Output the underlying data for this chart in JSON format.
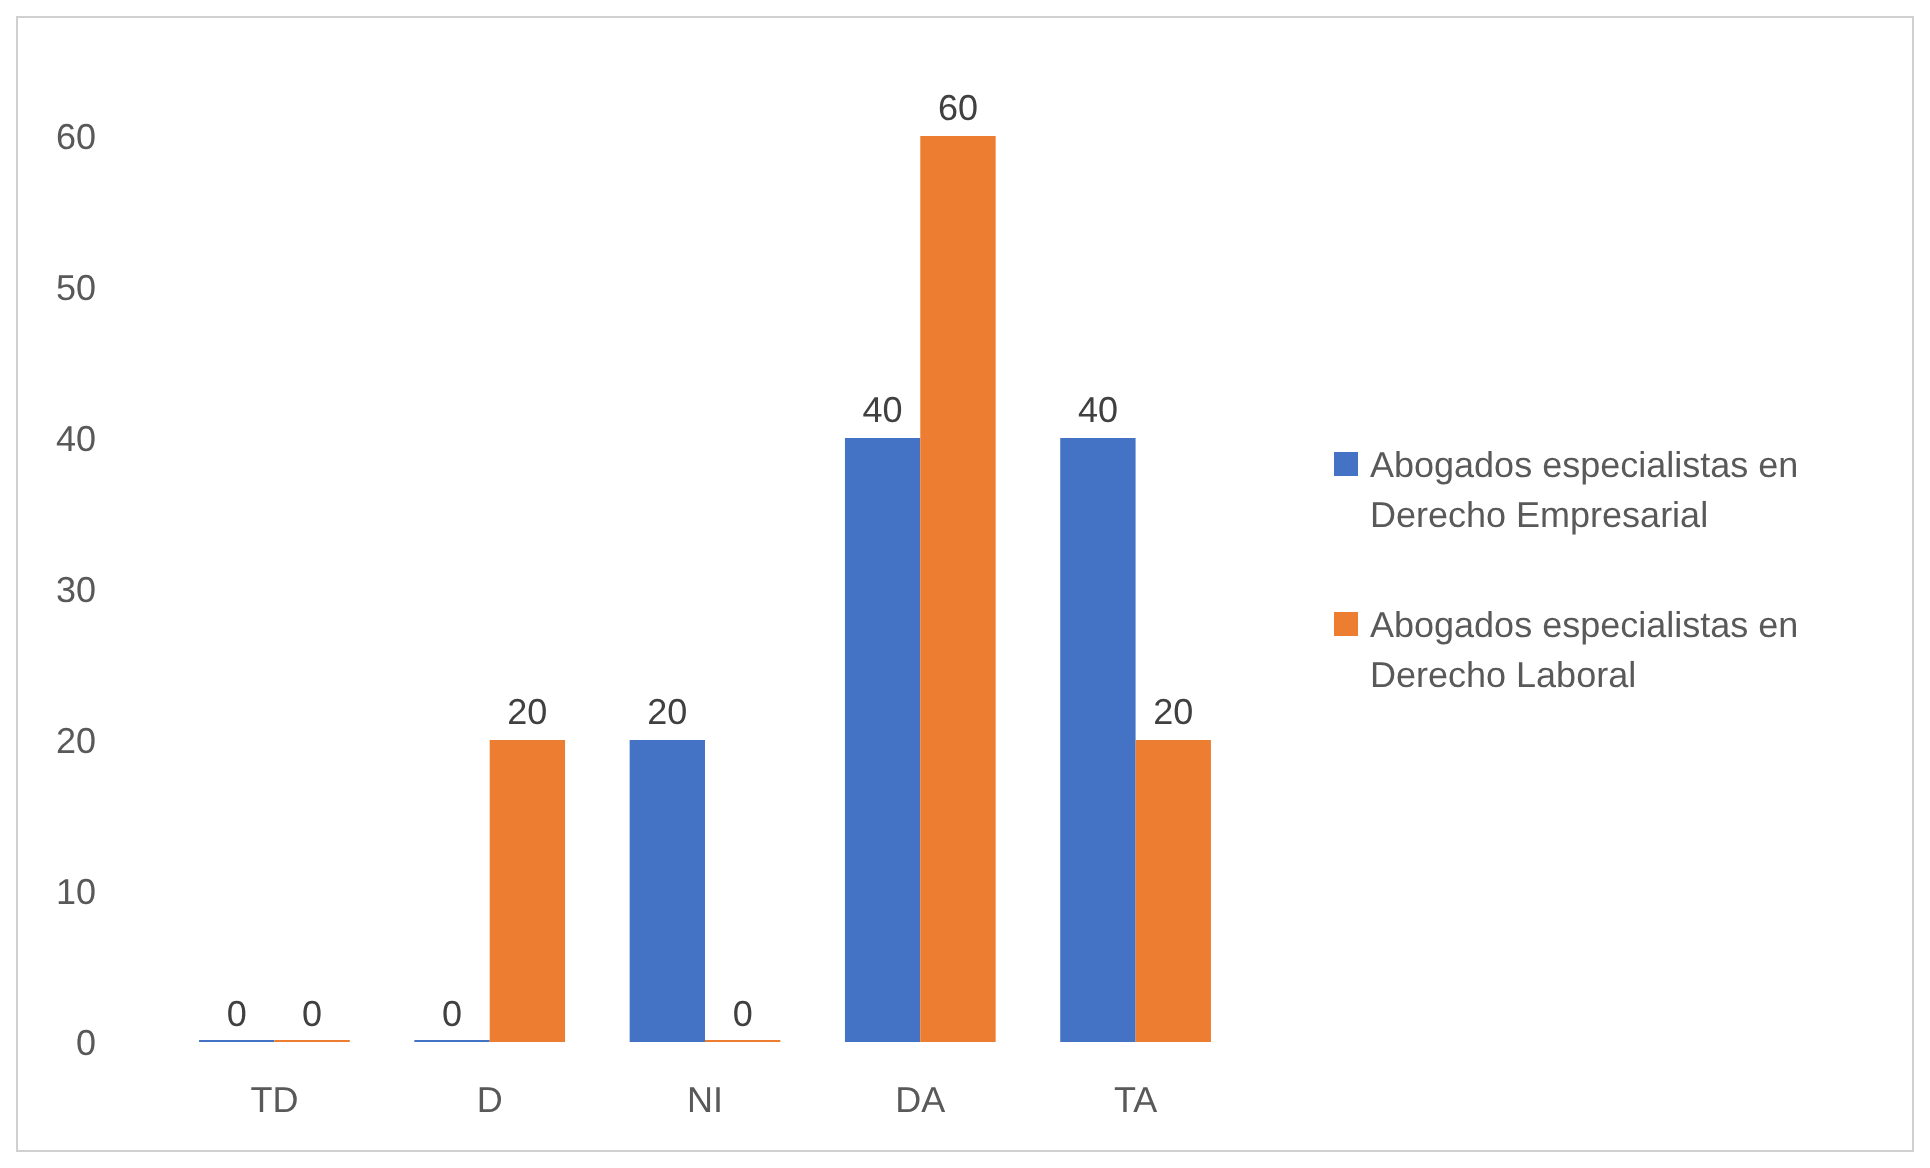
{
  "chart_data": {
    "type": "bar",
    "categories": [
      "TD",
      "D",
      "NI",
      "DA",
      "TA"
    ],
    "series": [
      {
        "name": "Abogados especialistas en Derecho Empresarial",
        "color": "#4472c4",
        "values": [
          0,
          0,
          20,
          40,
          40
        ]
      },
      {
        "name": "Abogados especialistas en Derecho Laboral",
        "color": "#ed7d31",
        "values": [
          0,
          20,
          0,
          60,
          20
        ]
      }
    ],
    "ylim": [
      0,
      60
    ],
    "yticks": [
      0,
      10,
      20,
      30,
      40,
      50,
      60
    ],
    "grid": false,
    "legend": "right",
    "data_labels": true
  }
}
